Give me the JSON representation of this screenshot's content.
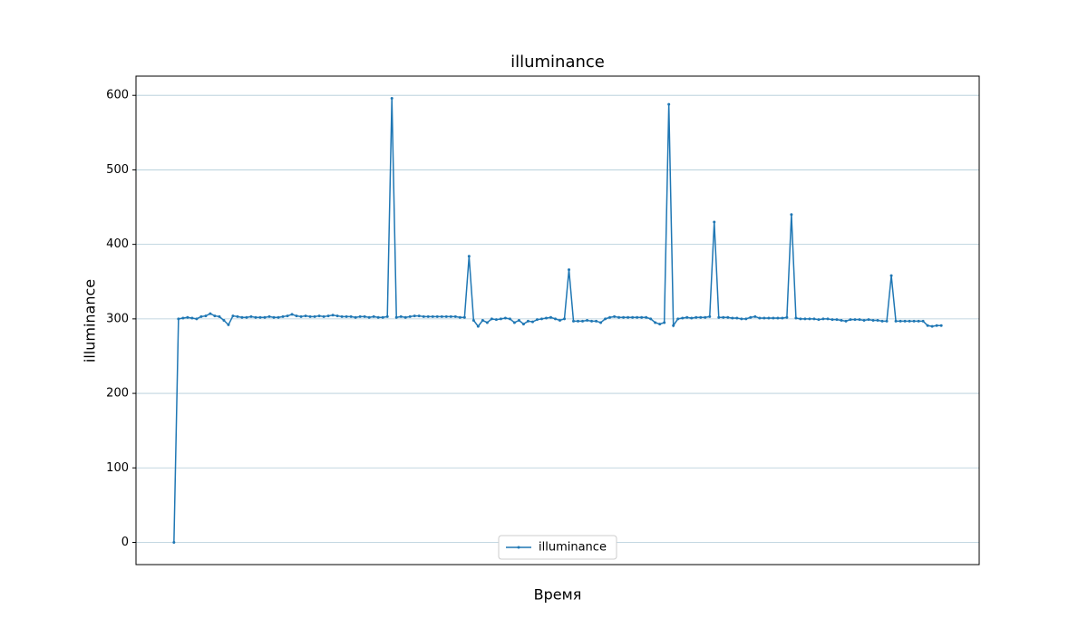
{
  "chart_data": {
    "type": "line",
    "title": "illuminance",
    "x_label": "Время",
    "y_label": "illuminance",
    "series": [
      {
        "name": "illuminance",
        "color": "#1f77b4",
        "values": [
          0,
          300,
          301,
          302,
          301,
          300,
          303,
          304,
          307,
          304,
          303,
          298,
          292,
          304,
          303,
          302,
          302,
          303,
          302,
          302,
          302,
          303,
          302,
          302,
          303,
          304,
          306,
          304,
          303,
          304,
          303,
          303,
          304,
          303,
          304,
          305,
          304,
          303,
          303,
          303,
          302,
          303,
          303,
          302,
          303,
          302,
          302,
          303,
          596,
          302,
          303,
          302,
          303,
          304,
          304,
          303,
          303,
          303,
          303,
          303,
          303,
          303,
          303,
          302,
          302,
          384,
          298,
          290,
          298,
          295,
          300,
          299,
          300,
          301,
          300,
          295,
          298,
          293,
          297,
          296,
          299,
          300,
          301,
          302,
          300,
          298,
          300,
          366,
          297,
          297,
          297,
          298,
          297,
          297,
          295,
          300,
          302,
          303,
          302,
          302,
          302,
          302,
          302,
          302,
          302,
          300,
          295,
          293,
          295,
          588,
          291,
          300,
          301,
          302,
          301,
          302,
          302,
          302,
          303,
          430,
          302,
          302,
          302,
          301,
          301,
          300,
          300,
          302,
          303,
          301,
          301,
          301,
          301,
          301,
          301,
          302,
          440,
          301,
          300,
          300,
          300,
          300,
          299,
          300,
          300,
          299,
          299,
          298,
          297,
          299,
          299,
          299,
          298,
          299,
          298,
          298,
          297,
          297,
          358,
          297,
          297,
          297,
          297,
          297,
          297,
          297,
          291,
          290,
          291,
          291
        ]
      }
    ],
    "ylim": [
      -29.8,
      625.8
    ],
    "yticks": [
      0,
      100,
      200,
      300,
      400,
      500,
      600
    ],
    "grid": true,
    "legend": "lower center"
  }
}
